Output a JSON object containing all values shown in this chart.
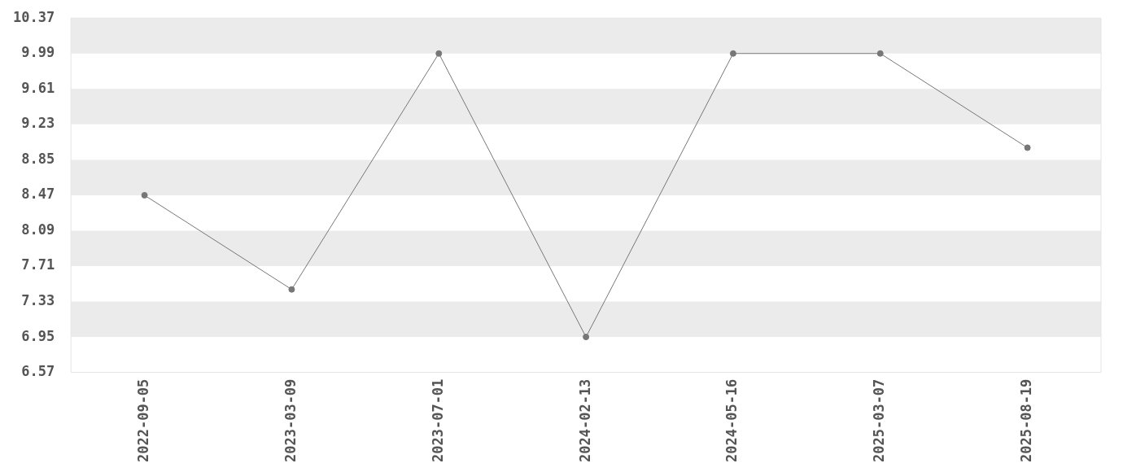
{
  "chart_data": {
    "type": "line",
    "categories": [
      "2022-09-05",
      "2023-03-09",
      "2023-07-01",
      "2024-02-13",
      "2024-05-16",
      "2025-03-07",
      "2025-08-19"
    ],
    "series": [
      {
        "color": "#777777",
        "values": [
          8.47,
          7.46,
          9.99,
          6.95,
          9.99,
          9.99,
          8.98
        ]
      }
    ],
    "ylim": [
      6.57,
      10.37
    ],
    "yticks": [
      6.57,
      6.95,
      7.33,
      7.71,
      8.09,
      8.47,
      8.85,
      9.23,
      9.61,
      9.99,
      10.37
    ],
    "bands": [
      {
        "axis": "y",
        "from": 6.95,
        "to": 7.33,
        "color": "#ebebeb"
      },
      {
        "axis": "y",
        "from": 7.71,
        "to": 8.09,
        "color": "#ebebeb"
      },
      {
        "axis": "y",
        "from": 8.47,
        "to": 8.85,
        "color": "#ebebeb"
      },
      {
        "axis": "y",
        "from": 9.23,
        "to": 9.61,
        "color": "#ebebeb"
      },
      {
        "axis": "y",
        "from": 9.99,
        "to": 10.37,
        "color": "#ebebeb"
      }
    ],
    "legend": false,
    "marker": "circle",
    "line_style": "solid"
  }
}
